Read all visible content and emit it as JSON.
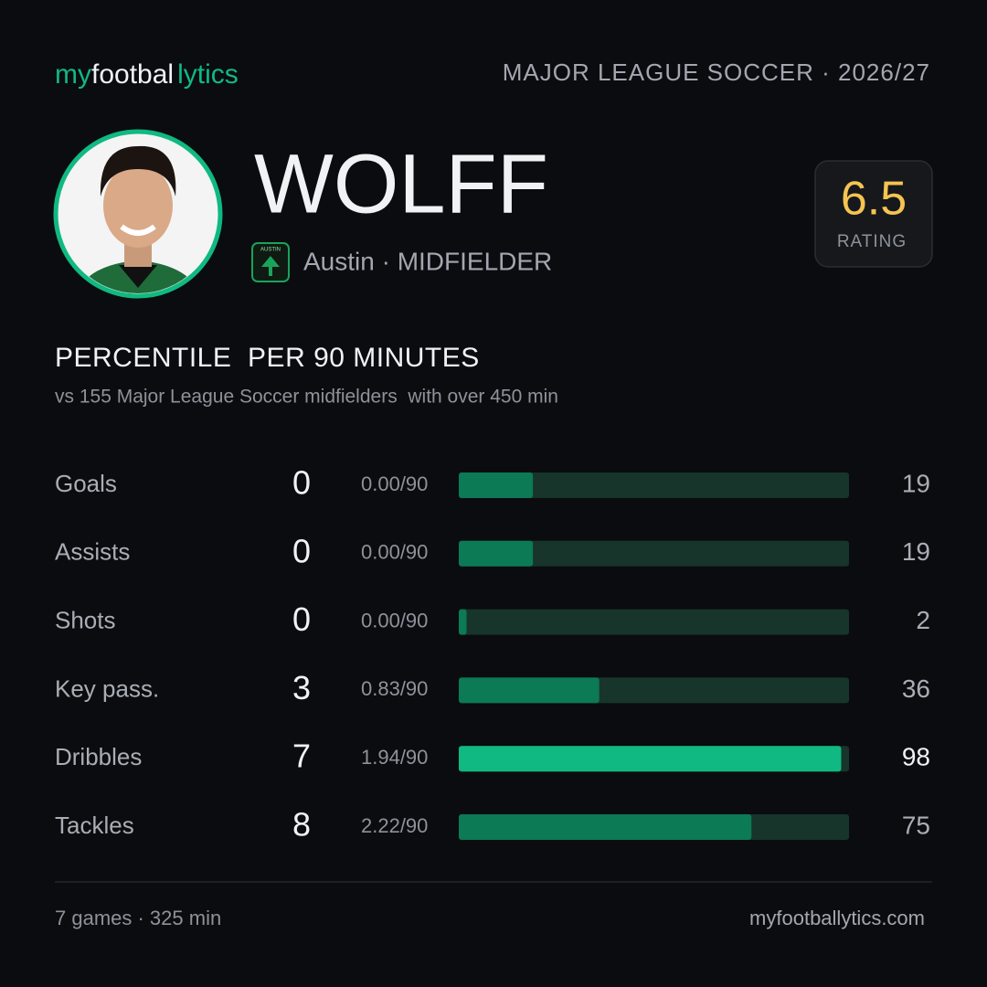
{
  "brand": {
    "part1": "my",
    "part2": "footbal",
    "part3": "lytics"
  },
  "header": {
    "league": "MAJOR LEAGUE SOCCER · 2026/27"
  },
  "player": {
    "name": "WOLFF",
    "badge_text": "AUSTIN",
    "subtitle": "Austin · MIDFIELDER"
  },
  "rating": {
    "value": 6.5,
    "label": "RATING"
  },
  "section": {
    "title": "PERCENTILE  PER 90 MINUTES",
    "subtitle": "vs 155 Major League Soccer midfielders  with over 450 min"
  },
  "colors": {
    "bar": "#0b7a55",
    "highlight": "#10b981",
    "track": "#17352a"
  },
  "stats": [
    {
      "label": "Goals",
      "total": 0,
      "per90": "0.00/90",
      "percentile": 19
    },
    {
      "label": "Assists",
      "total": 0,
      "per90": "0.00/90",
      "percentile": 19
    },
    {
      "label": "Shots",
      "total": 0,
      "per90": "0.00/90",
      "percentile": 2
    },
    {
      "label": "Key pass.",
      "total": 3,
      "per90": "0.83/90",
      "percentile": 36
    },
    {
      "label": "Dribbles",
      "total": 7,
      "per90": "1.94/90",
      "percentile": 98,
      "highlight": true
    },
    {
      "label": "Tackles",
      "total": 8,
      "per90": "2.22/90",
      "percentile": 75
    }
  ],
  "footer": {
    "left": "7 games · 325 min",
    "right": "myfootballytics.com"
  }
}
